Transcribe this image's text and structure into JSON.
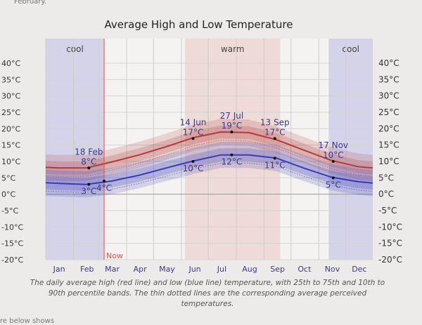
{
  "fragments": {
    "top": "February.",
    "bottom": "re below shows"
  },
  "chart_data": {
    "type": "line",
    "title": "Average High and Low Temperature",
    "ylim": [
      -20,
      40
    ],
    "yticks": [
      "40°C",
      "35°C",
      "30°C",
      "25°C",
      "20°C",
      "15°C",
      "10°C",
      "5°C",
      "0°C",
      "-5°C",
      "-10°C",
      "-15°C",
      "-20°C"
    ],
    "ytick_values": [
      40,
      35,
      30,
      25,
      20,
      15,
      10,
      5,
      0,
      -5,
      -10,
      -15,
      -20
    ],
    "xticks": [
      "Jan",
      "Feb",
      "Mar",
      "Apr",
      "May",
      "Jun",
      "Jul",
      "Aug",
      "Sep",
      "Oct",
      "Nov",
      "Dec"
    ],
    "grid": true,
    "seasons": [
      {
        "label": "cool",
        "start_day": 1,
        "end_day": 66,
        "color": "#c9c8e6"
      },
      {
        "label": "warm",
        "start_day": 156,
        "end_day": 262,
        "color": "#ecd3cd"
      },
      {
        "label": "cool",
        "start_day": 316,
        "end_day": 365,
        "color": "#c9c8e6"
      }
    ],
    "now": {
      "label": "Now",
      "day": 66,
      "color": "#d9534f"
    },
    "x_days": [
      1,
      15,
      46,
      74,
      105,
      135,
      166,
      196,
      227,
      258,
      288,
      319,
      349,
      365
    ],
    "series": [
      {
        "name": "high",
        "color": "#b23a3a",
        "values": [
          8.2,
          8,
          8,
          9.8,
          12,
          14.5,
          17.3,
          19,
          18.8,
          16.6,
          13.5,
          10.3,
          8.4,
          8
        ]
      },
      {
        "name": "low",
        "color": "#3a3ab8",
        "values": [
          3.5,
          3.3,
          3,
          4,
          5.8,
          8,
          10.2,
          12,
          12,
          11,
          8,
          5.2,
          3.8,
          3.4
        ]
      }
    ],
    "bands": {
      "inner": 2,
      "outer": 4
    },
    "annotations": [
      {
        "date": "18 Feb",
        "value": "8°C",
        "day": 49,
        "y": 8,
        "series": "high",
        "pos": "above"
      },
      {
        "date": "",
        "value": "3°C",
        "day": 49,
        "y": 3,
        "series": "low",
        "pos": "below"
      },
      {
        "date": "",
        "value": "4°C",
        "day": 66,
        "y": 4,
        "series": "low",
        "pos": "below"
      },
      {
        "date": "14 Jun",
        "value": "17°C",
        "day": 165,
        "y": 17,
        "series": "high",
        "pos": "above"
      },
      {
        "date": "",
        "value": "10°C",
        "day": 165,
        "y": 10,
        "series": "low",
        "pos": "below"
      },
      {
        "date": "27 Jul",
        "value": "19°C",
        "day": 208,
        "y": 19,
        "series": "high",
        "pos": "above"
      },
      {
        "date": "",
        "value": "12°C",
        "day": 208,
        "y": 12,
        "series": "low",
        "pos": "below"
      },
      {
        "date": "13 Sep",
        "value": "17°C",
        "day": 256,
        "y": 17,
        "series": "high",
        "pos": "above"
      },
      {
        "date": "",
        "value": "11°C",
        "day": 256,
        "y": 11,
        "series": "low",
        "pos": "below"
      },
      {
        "date": "17 Nov",
        "value": "10°C",
        "day": 321,
        "y": 10,
        "series": "high",
        "pos": "above"
      },
      {
        "date": "",
        "value": "5°C",
        "day": 321,
        "y": 5,
        "series": "low",
        "pos": "below"
      }
    ],
    "caption": "The daily average high (red line) and low (blue line) temperature, with 25th to 75th and 10th to 90th percentile bands. The thin dotted lines are the corresponding average perceived temperatures."
  }
}
